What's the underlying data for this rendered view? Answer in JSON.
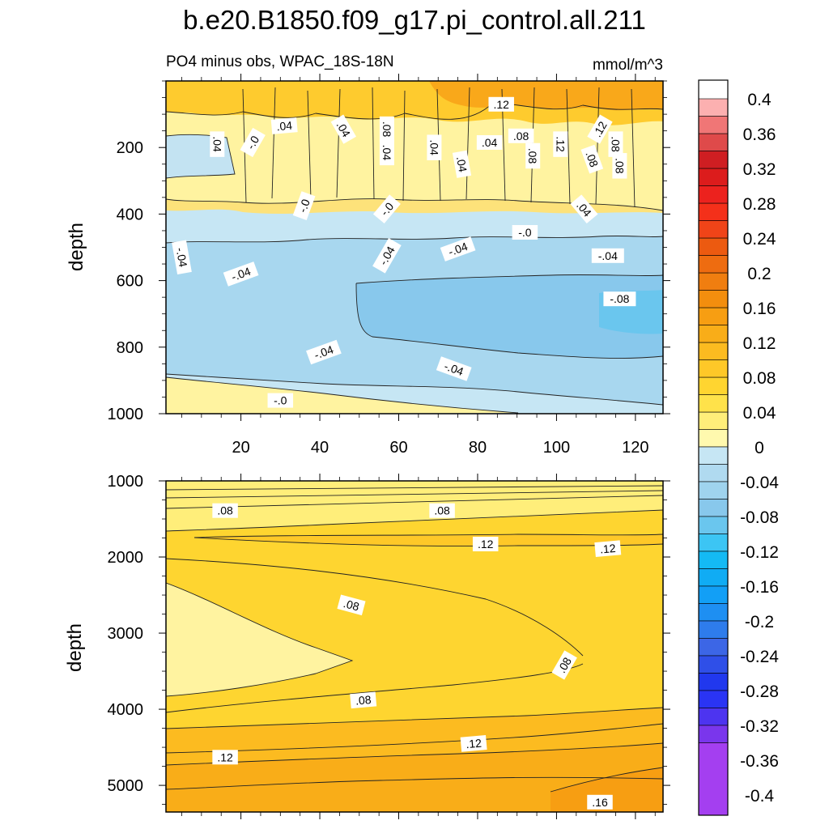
{
  "figure": {
    "title": "b.e20.B1850.f09_g17.pi_control.all.211",
    "subtitle": "PO4 minus obs, WPAC_18S-18N",
    "units": "mmol/m^3"
  },
  "colors": {
    "negative": [
      "#a43ff0",
      "#7a36ec",
      "#4d34f0",
      "#2a34f4",
      "#2138ee",
      "#2f4fe8",
      "#3c66e6",
      "#2e7cec",
      "#1e8ff2",
      "#129ff6",
      "#10acf4",
      "#14baf4",
      "#3cc5f4",
      "#6ac6ee",
      "#88c8ec",
      "#9fd3ee",
      "#b0daf0",
      "#c6e6f4"
    ],
    "positive": [
      "#fff9ae",
      "#ffee7a",
      "#ffe24a",
      "#ffd530",
      "#fec828",
      "#fcbb20",
      "#f9ad18",
      "#f79e12",
      "#f38e0e",
      "#f07e10",
      "#ee6c10",
      "#ec5a10",
      "#f04418",
      "#f4301a",
      "#ec221e",
      "#dc1c1c",
      "#cf1e22",
      "#df4a4a",
      "#f07676",
      "#fcb0b0"
    ]
  },
  "chart_data": [
    {
      "type": "contour",
      "panel": "upper",
      "title": "PO4 minus obs, WPAC_18S-18N",
      "units": "mmol/m^3",
      "xlabel": "",
      "ylabel": "depth",
      "xlim": [
        1,
        127
      ],
      "ylim": [
        1000,
        0
      ],
      "xticks": [
        20,
        40,
        60,
        80,
        100,
        120
      ],
      "xticklabels": [
        "20",
        "40",
        "60",
        "80",
        "100",
        "120"
      ],
      "yticks": [
        200,
        400,
        600,
        800,
        1000
      ],
      "yticklabels": [
        "200",
        "400",
        "600",
        "800",
        "1000"
      ],
      "contour_labels": [
        {
          "text": ".12",
          "x": 86,
          "y": 70,
          "angle": 0
        },
        {
          "text": ".04",
          "x": 31,
          "y": 135,
          "angle": -5
        },
        {
          "text": ".04",
          "x": 46,
          "y": 145,
          "angle": 60
        },
        {
          "text": ".08",
          "x": 57,
          "y": 145,
          "angle": 90
        },
        {
          "text": ".04",
          "x": 14,
          "y": 190,
          "angle": 90
        },
        {
          "text": "-.0",
          "x": 23,
          "y": 185,
          "angle": -60
        },
        {
          "text": ".04",
          "x": 83,
          "y": 185,
          "angle": 0
        },
        {
          "text": ".08",
          "x": 91,
          "y": 165,
          "angle": 0
        },
        {
          "text": ".12",
          "x": 101,
          "y": 190,
          "angle": 90
        },
        {
          "text": ".12",
          "x": 111,
          "y": 145,
          "angle": -60
        },
        {
          "text": ".08",
          "x": 115,
          "y": 190,
          "angle": 90
        },
        {
          "text": ".04",
          "x": 69,
          "y": 200,
          "angle": 90
        },
        {
          "text": ".04",
          "x": 57,
          "y": 215,
          "angle": 90
        },
        {
          "text": ".08",
          "x": 94,
          "y": 225,
          "angle": 90
        },
        {
          "text": ".08",
          "x": 109,
          "y": 235,
          "angle": 70
        },
        {
          "text": ".08",
          "x": 116,
          "y": 255,
          "angle": 90
        },
        {
          "text": ".04",
          "x": 76,
          "y": 250,
          "angle": 80
        },
        {
          "text": "-.0",
          "x": 36,
          "y": 375,
          "angle": -70
        },
        {
          "text": "-.0",
          "x": 57,
          "y": 385,
          "angle": -50
        },
        {
          "text": ".04",
          "x": 107,
          "y": 385,
          "angle": 50
        },
        {
          "text": "-.0",
          "x": 92,
          "y": 455,
          "angle": 0
        },
        {
          "text": "-.04",
          "x": 5,
          "y": 530,
          "angle": 80
        },
        {
          "text": "-.04",
          "x": 57,
          "y": 525,
          "angle": -60
        },
        {
          "text": "-.04",
          "x": 75,
          "y": 505,
          "angle": -20
        },
        {
          "text": "-.04",
          "x": 113,
          "y": 525,
          "angle": 0
        },
        {
          "text": "-.04",
          "x": 20,
          "y": 580,
          "angle": -20
        },
        {
          "text": "-.08",
          "x": 116,
          "y": 655,
          "angle": 0
        },
        {
          "text": "-.04",
          "x": 41,
          "y": 815,
          "angle": -20
        },
        {
          "text": "-.04",
          "x": 74,
          "y": 865,
          "angle": 20
        },
        {
          "text": "-.0",
          "x": 30,
          "y": 960,
          "angle": 0
        }
      ]
    },
    {
      "type": "contour",
      "panel": "lower",
      "xlabel": "",
      "ylabel": "depth",
      "xlim": [
        1,
        127
      ],
      "ylim": [
        5350,
        1000
      ],
      "xticks": [
        20,
        40,
        60,
        80,
        100,
        120
      ],
      "yticks": [
        1000,
        2000,
        3000,
        4000,
        5000
      ],
      "yticklabels": [
        "1000",
        "2000",
        "3000",
        "4000",
        "5000"
      ],
      "contour_labels": [
        {
          "text": ".08",
          "x": 16,
          "y": 1390,
          "angle": 0
        },
        {
          "text": ".08",
          "x": 71,
          "y": 1390,
          "angle": 0
        },
        {
          "text": ".12",
          "x": 82,
          "y": 1830,
          "angle": 0
        },
        {
          "text": ".12",
          "x": 113,
          "y": 1890,
          "angle": -5
        },
        {
          "text": ".08",
          "x": 48,
          "y": 2630,
          "angle": 15
        },
        {
          "text": ".08",
          "x": 102,
          "y": 3420,
          "angle": -60
        },
        {
          "text": ".08",
          "x": 51,
          "y": 3880,
          "angle": -5
        },
        {
          "text": ".12",
          "x": 79,
          "y": 4450,
          "angle": -5
        },
        {
          "text": ".12",
          "x": 16,
          "y": 4630,
          "angle": 0
        },
        {
          "text": ".16",
          "x": 111,
          "y": 5220,
          "angle": 0
        }
      ]
    },
    {
      "type": "colorbar",
      "ticks": [
        0.4,
        0.36,
        0.32,
        0.28,
        0.24,
        0.2,
        0.16,
        0.12,
        0.08,
        0.04,
        0,
        -0.04,
        -0.08,
        -0.12,
        -0.16,
        -0.2,
        -0.24,
        -0.28,
        -0.32,
        -0.36,
        -0.4
      ],
      "ticklabels": [
        "0.4",
        "0.36",
        "0.32",
        "0.28",
        "0.24",
        "0.2",
        "0.16",
        "0.12",
        "0.08",
        "0.04",
        "0",
        "-0.04",
        "-0.08",
        "-0.12",
        "-0.16",
        "-0.2",
        "-0.24",
        "-0.28",
        "-0.32",
        "-0.36",
        "-0.4"
      ]
    }
  ]
}
